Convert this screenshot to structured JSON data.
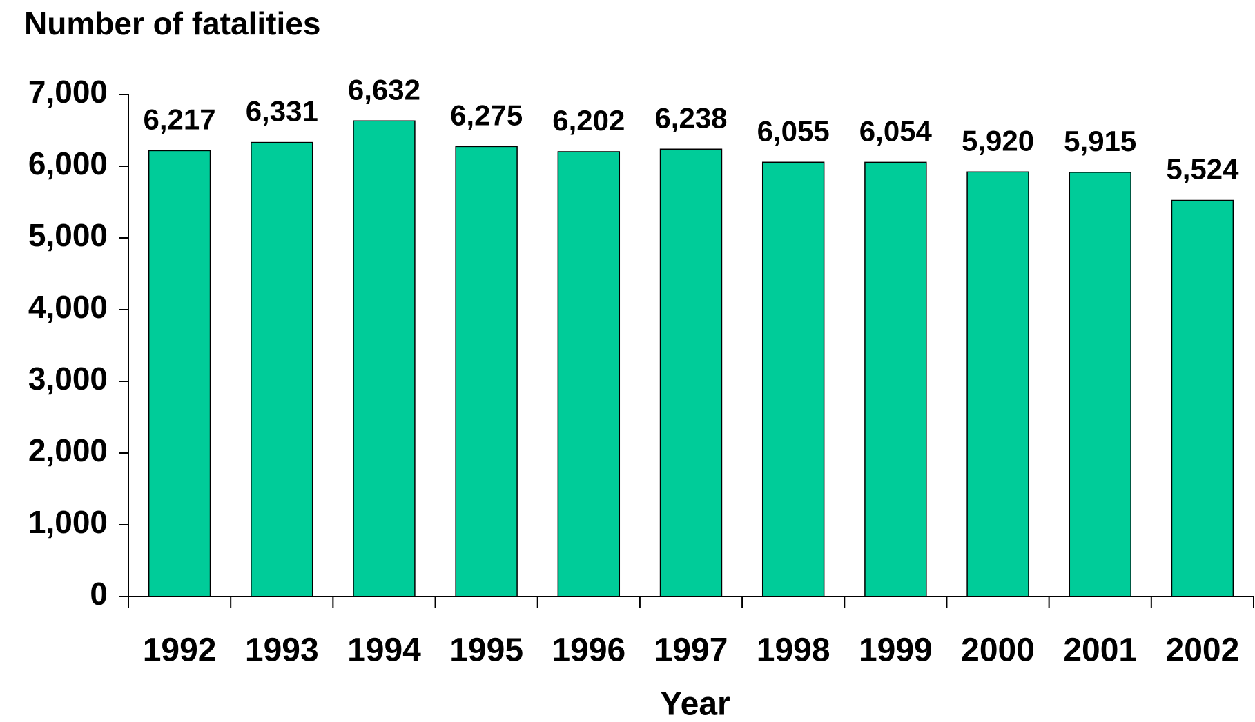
{
  "chart_data": {
    "type": "bar",
    "y_axis_label": "Number of fatalities",
    "x_axis_label": "Year",
    "categories": [
      "1992",
      "1993",
      "1994",
      "1995",
      "1996",
      "1997",
      "1998",
      "1999",
      "2000",
      "2001",
      "2002"
    ],
    "values": [
      6217,
      6331,
      6632,
      6275,
      6202,
      6238,
      6055,
      6054,
      5920,
      5915,
      5524
    ],
    "value_labels": [
      "6,217",
      "6,331",
      "6,632",
      "6,275",
      "6,202",
      "6,238",
      "6,055",
      "6,054",
      "5,920",
      "5,915",
      "5,524"
    ],
    "color": "#00cc99",
    "ylim": [
      0,
      7000
    ],
    "yticks": [
      0,
      {
        "value": 1000,
        "label": "1,000"
      },
      {
        "value": 2000,
        "label": "2,000"
      },
      {
        "value": 3000,
        "label": "3,000"
      },
      {
        "value": 4000,
        "label": "4,000"
      },
      {
        "value": 5000,
        "label": "5,000"
      },
      {
        "value": 6000,
        "label": "6,000"
      },
      {
        "value": 7000,
        "label": "7,000"
      }
    ],
    "grid": false
  }
}
